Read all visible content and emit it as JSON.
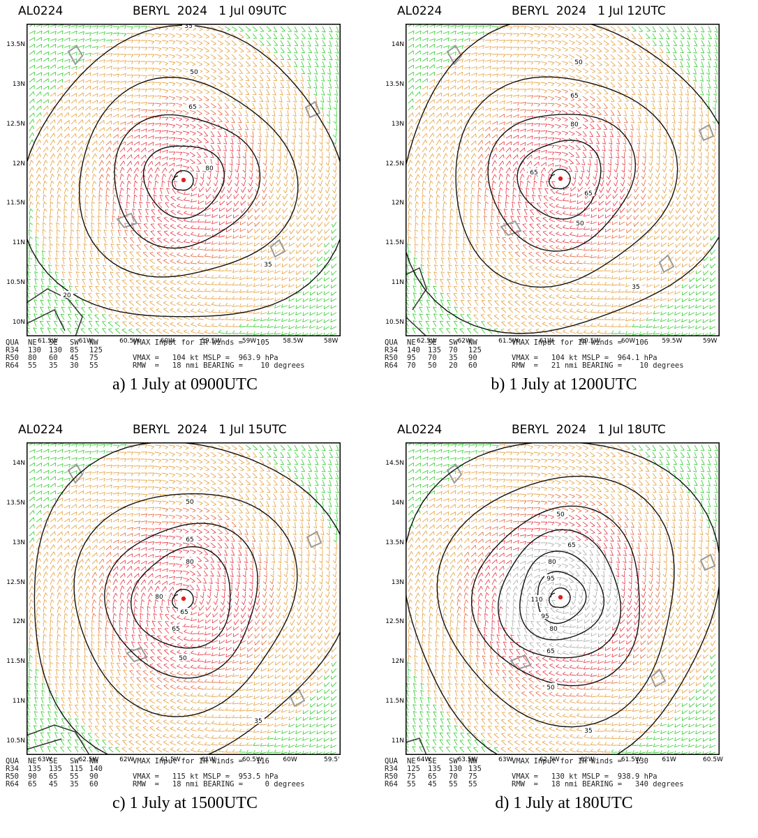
{
  "panels": [
    {
      "storm_id": "AL0224",
      "title": "BERYL  2024   1 Jul 09UTC",
      "lat_labels": [
        "13.5N",
        "13N",
        "12.5N",
        "12N",
        "11.5N",
        "11N",
        "10.5N",
        "10N"
      ],
      "lon_labels": [
        "61.5W",
        "61W",
        "60.5W",
        "60W",
        "59.5W",
        "59W",
        "58.5W",
        "58W"
      ],
      "contour_labels": [
        "35",
        "50",
        "65",
        "80",
        "35",
        "20"
      ],
      "info": {
        "header": [
          "QUA",
          "NE",
          "SE",
          "SW",
          "NW"
        ],
        "rows": [
          {
            "name": "R34",
            "vals": [
              "130",
              "130",
              "85",
              "125"
            ]
          },
          {
            "name": "R50",
            "vals": [
              "80",
              "60",
              "45",
              "75"
            ]
          },
          {
            "name": "R64",
            "vals": [
              "55",
              "35",
              "30",
              "55"
            ]
          }
        ],
        "line1": "VMAX Input for IR Winds =   105",
        "line2": "VMAX =   104 kt MSLP =  963.9 hPa",
        "line3": "RMW  =   18 nmi BEARING =    10 degrees"
      },
      "caption": "a) 1 July at 0900UTC"
    },
    {
      "storm_id": "AL0224",
      "title": "BERYL  2024   1 Jul 12UTC",
      "lat_labels": [
        "14N",
        "13.5N",
        "13N",
        "12.5N",
        "12N",
        "11.5N",
        "11N",
        "10.5N"
      ],
      "lon_labels": [
        "62.5W",
        "62W",
        "61.5W",
        "61W",
        "60.5W",
        "60W",
        "59.5W",
        "59W"
      ],
      "contour_labels": [
        "50",
        "65",
        "80",
        "65",
        "65",
        "50",
        "35"
      ],
      "info": {
        "header": [
          "QUA",
          "NE",
          "SE",
          "SW",
          "NW"
        ],
        "rows": [
          {
            "name": "R34",
            "vals": [
              "140",
              "135",
              "70",
              "125"
            ]
          },
          {
            "name": "R50",
            "vals": [
              "95",
              "70",
              "35",
              "90"
            ]
          },
          {
            "name": "R64",
            "vals": [
              "70",
              "50",
              "20",
              "60"
            ]
          }
        ],
        "line1": "VMAX Input for IR Winds =   106",
        "line2": "VMAX =   104 kt MSLP =  964.1 hPa",
        "line3": "RMW  =   21 nmi BEARING =    10 degrees"
      },
      "caption": "b) 1 July at 1200UTC"
    },
    {
      "storm_id": "AL0224",
      "title": "BERYL  2024   1 Jul 15UTC",
      "lat_labels": [
        "14N",
        "13.5N",
        "13N",
        "12.5N",
        "12N",
        "11.5N",
        "11N",
        "10.5N"
      ],
      "lon_labels": [
        "63W",
        "62.5W",
        "62W",
        "61.5W",
        "61W",
        "60.5W",
        "60W",
        "59.5'"
      ],
      "contour_labels": [
        "50",
        "65",
        "80",
        "80",
        "65",
        "65",
        "50",
        "35"
      ],
      "info": {
        "header": [
          "QUA",
          "NE",
          "SE",
          "SW",
          "NW"
        ],
        "rows": [
          {
            "name": "R34",
            "vals": [
              "135",
              "135",
              "115",
              "140"
            ]
          },
          {
            "name": "R50",
            "vals": [
              "90",
              "65",
              "55",
              "90"
            ]
          },
          {
            "name": "R64",
            "vals": [
              "65",
              "45",
              "35",
              "60"
            ]
          }
        ],
        "line1": "VMAX Input for IR Winds =   116",
        "line2": "VMAX =   115 kt MSLP =  953.5 hPa",
        "line3": "RMW  =   18 nmi BEARING =     0 degrees"
      },
      "caption": "c) 1 July  at 1500UTC"
    },
    {
      "storm_id": "AL0224",
      "title": "BERYL  2024   1 Jul 18UTC",
      "lat_labels": [
        "14.5N",
        "14N",
        "13.5N",
        "13N",
        "12.5N",
        "12N",
        "11.5N",
        "11N"
      ],
      "lon_labels": [
        "64W",
        "63.5W",
        "63W",
        "62.5W",
        "62W",
        "61.5W",
        "61W",
        "60.5W"
      ],
      "contour_labels": [
        "50",
        "65",
        "80",
        "95",
        "110",
        "95",
        "80",
        "65",
        "50",
        "35"
      ],
      "info": {
        "header": [
          "QUA",
          "NE",
          "SE",
          "SW",
          "NW"
        ],
        "rows": [
          {
            "name": "R34",
            "vals": [
              "125",
              "135",
              "130",
              "135"
            ]
          },
          {
            "name": "R50",
            "vals": [
              "75",
              "65",
              "70",
              "75"
            ]
          },
          {
            "name": "R64",
            "vals": [
              "55",
              "45",
              "55",
              "55"
            ]
          }
        ],
        "line1": "VMAX Input for IR Winds =   130",
        "line2": "VMAX =   130 kt MSLP =  938.9 hPa",
        "line3": "RMW  =   18 nmi BEARING =   340 degrees"
      },
      "caption": "d) 1 July  at 180UTC"
    }
  ],
  "colors": {
    "wind_34": "#3fcf3a",
    "wind_50": "#e6a64a",
    "wind_64": "#e8734a",
    "wind_83": "#e84550",
    "wind_96": "#b0b0b0",
    "contour": "#111111",
    "land": "#9a9a9a",
    "center": "#e02020"
  }
}
